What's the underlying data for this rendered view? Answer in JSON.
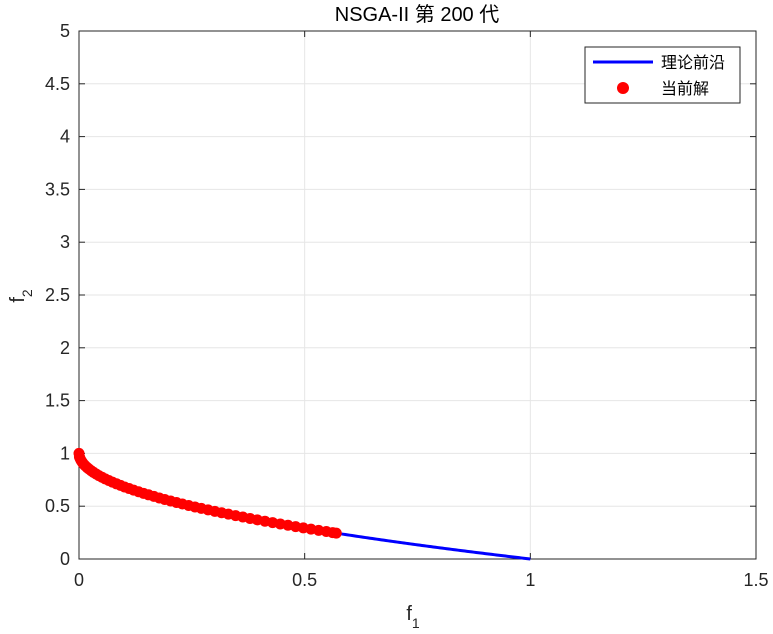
{
  "chart_data": {
    "type": "line",
    "title": "NSGA-II 第 200 代",
    "xlabel": {
      "base": "f",
      "sub": "1"
    },
    "ylabel": {
      "base": "f",
      "sub": "2"
    },
    "xlim": [
      0,
      1.5
    ],
    "ylim": [
      0,
      5
    ],
    "xticks": [
      0,
      0.5,
      1,
      1.5
    ],
    "xtick_labels": [
      "0",
      "0.5",
      "1",
      "1.5"
    ],
    "yticks": [
      0,
      0.5,
      1,
      1.5,
      2,
      2.5,
      3,
      3.5,
      4,
      4.5,
      5
    ],
    "ytick_labels": [
      "0",
      "0.5",
      "1",
      "1.5",
      "2",
      "2.5",
      "3",
      "3.5",
      "4",
      "4.5",
      "5"
    ],
    "grid": true,
    "legend_position": "top-right",
    "series": [
      {
        "name": "理论前沿",
        "kind": "line",
        "color": "#0000ff",
        "function": "f2 = 1 - sqrt(f1)",
        "domain": [
          0,
          1
        ]
      },
      {
        "name": "当前解",
        "kind": "scatter",
        "color": "#ff0000",
        "x": [
          0.0,
          0.001,
          0.002,
          0.004,
          0.006,
          0.008,
          0.011,
          0.014,
          0.018,
          0.022,
          0.027,
          0.032,
          0.038,
          0.044,
          0.051,
          0.058,
          0.066,
          0.074,
          0.083,
          0.092,
          0.101,
          0.111,
          0.121,
          0.132,
          0.143,
          0.154,
          0.166,
          0.178,
          0.19,
          0.203,
          0.216,
          0.229,
          0.243,
          0.257,
          0.271,
          0.286,
          0.301,
          0.316,
          0.331,
          0.347,
          0.363,
          0.379,
          0.395,
          0.412,
          0.429,
          0.446,
          0.463,
          0.48,
          0.497,
          0.514,
          0.531,
          0.548,
          0.562,
          0.57
        ],
        "y": [
          1.0,
          0.968,
          0.955,
          0.937,
          0.923,
          0.911,
          0.895,
          0.882,
          0.866,
          0.852,
          0.836,
          0.821,
          0.805,
          0.79,
          0.774,
          0.759,
          0.743,
          0.728,
          0.712,
          0.697,
          0.682,
          0.667,
          0.652,
          0.637,
          0.622,
          0.608,
          0.593,
          0.578,
          0.564,
          0.549,
          0.535,
          0.521,
          0.507,
          0.493,
          0.479,
          0.465,
          0.451,
          0.438,
          0.425,
          0.411,
          0.398,
          0.384,
          0.371,
          0.358,
          0.345,
          0.332,
          0.32,
          0.307,
          0.295,
          0.283,
          0.271,
          0.26,
          0.25,
          0.245
        ]
      }
    ]
  }
}
